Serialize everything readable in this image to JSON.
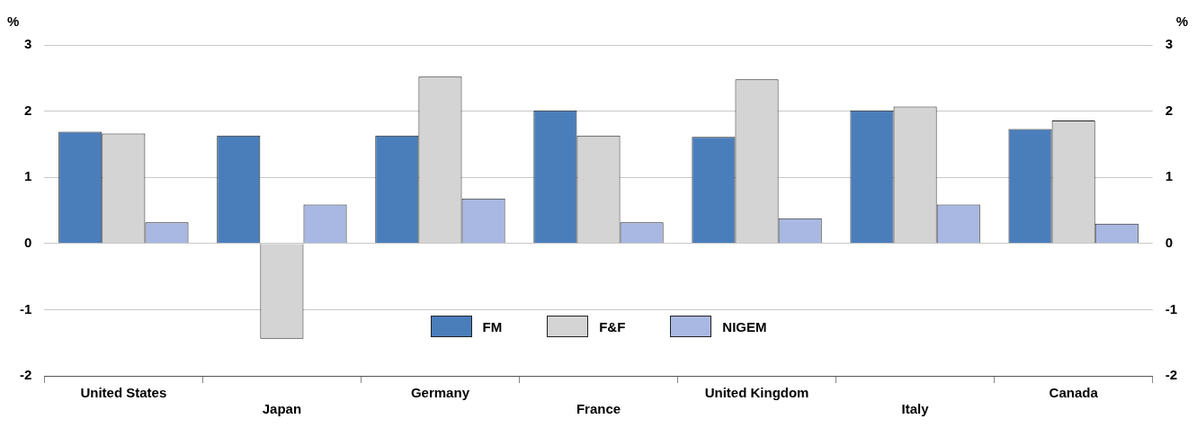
{
  "chart_data": {
    "type": "bar",
    "categories": [
      "United States",
      "Japan",
      "Germany",
      "France",
      "United Kingdom",
      "Italy",
      "Canada"
    ],
    "series": [
      {
        "name": "FM",
        "color": "#4a7ebb",
        "values": [
          1.69,
          1.63,
          1.63,
          2.01,
          1.61,
          2.01,
          1.73
        ]
      },
      {
        "name": "F&F",
        "color": "#d4d4d4",
        "values": [
          1.66,
          -1.44,
          2.52,
          1.63,
          2.48,
          2.07,
          1.86
        ]
      },
      {
        "name": "NIGEM",
        "color": "#a9b8e2",
        "values": [
          0.32,
          0.59,
          0.68,
          0.32,
          0.38,
          0.59,
          0.3
        ]
      }
    ],
    "ylabel": "%",
    "y2label": "%",
    "ylim": [
      -2,
      3
    ],
    "yticks": [
      -2,
      -1,
      0,
      1,
      2,
      3
    ],
    "y2lim": [
      -2,
      3
    ],
    "y2ticks": [
      -2,
      -1,
      0,
      1,
      2,
      3
    ],
    "grid": "y",
    "legend": "bottom"
  }
}
